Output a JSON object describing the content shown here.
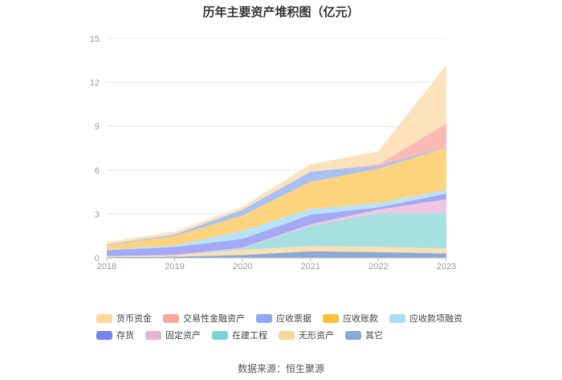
{
  "chart_data": {
    "type": "area",
    "stacked": true,
    "title": "历年主要资产堆积图（亿元）",
    "x": [
      "2018",
      "2019",
      "2020",
      "2021",
      "2022",
      "2023"
    ],
    "ylim": [
      0,
      15
    ],
    "yticks": [
      0,
      3,
      6,
      9,
      12,
      15
    ],
    "grid": true,
    "legend_position": "bottom",
    "series": [
      {
        "name": "其它",
        "color": "#8aa9d6",
        "values": [
          0.05,
          0.08,
          0.2,
          0.45,
          0.4,
          0.3
        ]
      },
      {
        "name": "无形资产",
        "color": "#fbe0b4",
        "values": [
          0.05,
          0.1,
          0.35,
          0.35,
          0.35,
          0.35
        ]
      },
      {
        "name": "在建工程",
        "color": "#a7e0e0",
        "values": [
          0.0,
          0.0,
          0.1,
          1.4,
          2.3,
          2.4
        ]
      },
      {
        "name": "固定资产",
        "color": "#f2c6e2",
        "values": [
          0.02,
          0.02,
          0.05,
          0.1,
          0.25,
          0.95
        ]
      },
      {
        "name": "存货",
        "color": "#a3a9f5",
        "values": [
          0.4,
          0.55,
          0.6,
          0.65,
          0.15,
          0.4
        ]
      },
      {
        "name": "应收款项融资",
        "color": "#b8e2f8",
        "values": [
          0.05,
          0.1,
          0.55,
          0.4,
          0.3,
          0.25
        ]
      },
      {
        "name": "应收账款",
        "color": "#fdd37d",
        "values": [
          0.3,
          0.65,
          1.05,
          1.85,
          2.35,
          2.9
        ]
      },
      {
        "name": "应收票据",
        "color": "#aac1f4",
        "values": [
          0.05,
          0.1,
          0.4,
          0.7,
          0.2,
          0.05
        ]
      },
      {
        "name": "交易性金融资产",
        "color": "#fbbbb5",
        "values": [
          0.0,
          0.0,
          0.0,
          0.0,
          0.1,
          1.6
        ]
      },
      {
        "name": "货币资金",
        "color": "#fde3bc",
        "values": [
          0.18,
          0.2,
          0.2,
          0.5,
          0.9,
          4.0
        ]
      }
    ]
  },
  "legend": [
    {
      "label": "货币资金",
      "color": "#fdd89a"
    },
    {
      "label": "交易性金融资产",
      "color": "#f9a99a"
    },
    {
      "label": "应收票据",
      "color": "#8fa8f2"
    },
    {
      "label": "应收账款",
      "color": "#fbbf3a"
    },
    {
      "label": "应收款项融资",
      "color": "#a8dcf7"
    },
    {
      "label": "存货",
      "color": "#7b82ee"
    },
    {
      "label": "固定资产",
      "color": "#e9b3d8"
    },
    {
      "label": "在建工程",
      "color": "#7dd3d3"
    },
    {
      "label": "无形资产",
      "color": "#f9d79a"
    },
    {
      "label": "其它",
      "color": "#8aa9d6"
    }
  ],
  "source": "数据来源：恒生聚源"
}
